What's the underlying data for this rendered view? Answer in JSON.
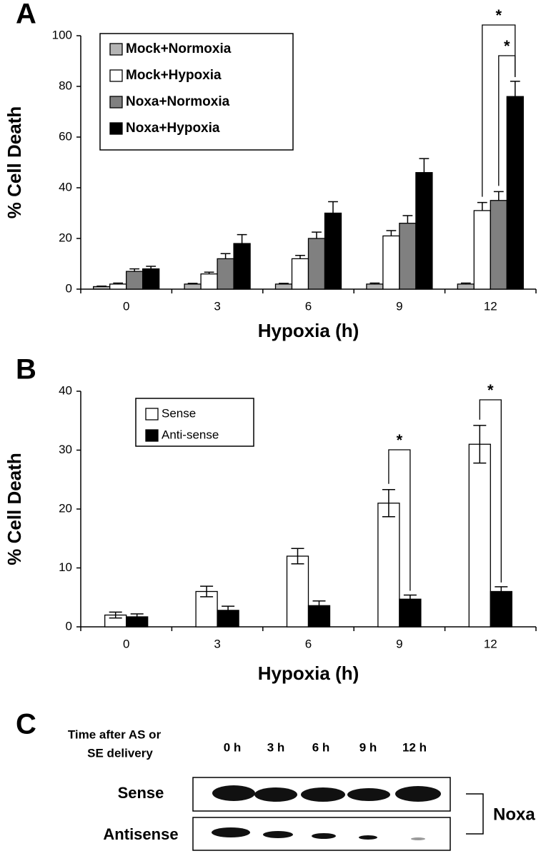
{
  "chart_data": [
    {
      "type": "bar",
      "panel": "A",
      "x_label": "Hypoxia (h)",
      "y_label": "% Cell Death",
      "categories": [
        "0",
        "3",
        "6",
        "9",
        "12"
      ],
      "series": [
        {
          "name": "Mock+Normoxia",
          "color": "#b4b4b4",
          "values": [
            1,
            2,
            2,
            2,
            2
          ],
          "errors": [
            0.2,
            0.3,
            0.3,
            0.4,
            0.4
          ]
        },
        {
          "name": "Mock+Hypoxia",
          "color": "#ffffff",
          "values": [
            2,
            6,
            12,
            21,
            31
          ],
          "errors": [
            0.4,
            0.7,
            1.3,
            2.1,
            3.2
          ]
        },
        {
          "name": "Noxa+Normoxia",
          "color": "#808080",
          "values": [
            7,
            12,
            20,
            26,
            35
          ],
          "errors": [
            1,
            2,
            2.5,
            3,
            3.5
          ]
        },
        {
          "name": "Noxa+Hypoxia",
          "color": "#000000",
          "values": [
            8,
            18,
            30,
            46,
            76
          ],
          "errors": [
            1,
            3.5,
            4.5,
            5.5,
            6
          ]
        }
      ],
      "error_bars": "upper",
      "ylim": [
        0,
        100
      ],
      "yticks": [
        0,
        20,
        40,
        60,
        80,
        100
      ],
      "annotations": [
        "*",
        "*"
      ]
    },
    {
      "type": "bar",
      "panel": "B",
      "x_label": "Hypoxia (h)",
      "y_label": "% Cell Death",
      "categories": [
        "0",
        "3",
        "6",
        "9",
        "12"
      ],
      "series": [
        {
          "name": "Sense",
          "color": "#ffffff",
          "values": [
            2,
            6,
            12,
            21,
            31
          ],
          "errors": [
            0.5,
            0.9,
            1.3,
            2.3,
            3.2
          ]
        },
        {
          "name": "Anti-sense",
          "color": "#000000",
          "values": [
            1.7,
            2.8,
            3.6,
            4.7,
            6
          ],
          "errors": [
            0.5,
            0.7,
            0.8,
            0.7,
            0.8
          ]
        }
      ],
      "error_bars": "both",
      "ylim": [
        0,
        40
      ],
      "yticks": [
        0,
        10,
        20,
        30,
        40
      ],
      "annotations": [
        "*",
        "*"
      ]
    }
  ],
  "blot": {
    "panel": "C",
    "header": [
      "Time after AS or",
      "SE delivery"
    ],
    "lanes": [
      "0 h",
      "3 h",
      "6 h",
      "9 h",
      "12 h"
    ],
    "rows": [
      "Sense",
      "Antisense"
    ],
    "protein": "Noxa"
  }
}
